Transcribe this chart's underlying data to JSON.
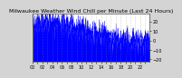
{
  "title": "Milwaukee Weather Wind Chill per Minute (Last 24 Hours)",
  "bg_color": "#d4d4d4",
  "plot_bg_color": "#ffffff",
  "line_color": "#0000ff",
  "fill_color": "#0000ff",
  "ylim": [
    -22,
    28
  ],
  "yticks": [
    -20,
    -10,
    0,
    10,
    20
  ],
  "n_points": 1440,
  "seed": 42,
  "title_fontsize": 4.5,
  "tick_fontsize": 3.5,
  "grid_color": "#888888",
  "grid_style": ":"
}
